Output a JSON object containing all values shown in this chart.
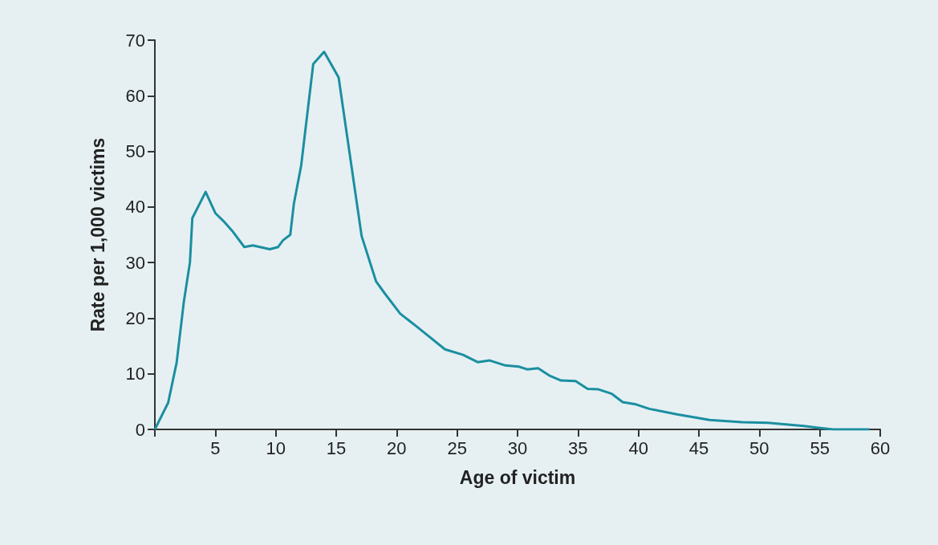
{
  "chart_data": {
    "type": "line",
    "xlabel": "Age of victim",
    "ylabel": "Rate per 1,000 victims",
    "x": [
      0,
      1.1,
      1.8,
      2.4,
      2.9,
      3.1,
      4.2,
      5,
      5.7,
      6.4,
      7.4,
      8.1,
      9.5,
      10.2,
      10.6,
      11.2,
      11.5,
      12.1,
      13.1,
      14,
      15.2,
      16.1,
      17.1,
      18.3,
      19,
      20.3,
      21.6,
      24,
      25.5,
      26.7,
      27.7,
      29,
      30.1,
      30.8,
      31.7,
      32.7,
      33.6,
      34.8,
      35.8,
      36.7,
      37.8,
      38.7,
      39.8,
      40.9,
      43.2,
      45.9,
      48.6,
      50.7,
      53.7,
      56.1,
      59.1
    ],
    "series": [
      {
        "color": "#1a8fa0",
        "values": [
          0,
          4.8,
          12,
          23,
          30,
          38,
          42.7,
          38.9,
          37.4,
          35.7,
          32.8,
          33.1,
          32.4,
          32.8,
          34,
          35,
          40.6,
          47.4,
          65.7,
          67.9,
          63.3,
          49.8,
          34.8,
          26.6,
          24.5,
          20.8,
          18.6,
          14.4,
          13.4,
          12.1,
          12.4,
          11.5,
          11.3,
          10.8,
          11,
          9.6,
          8.8,
          8.7,
          7.3,
          7.2,
          6.4,
          4.9,
          4.5,
          3.7,
          2.7,
          1.7,
          1.3,
          1.2,
          0.6,
          0,
          0
        ]
      }
    ],
    "xlim": [
      0,
      60
    ],
    "xticks": [
      {
        "value": 0,
        "label": null
      },
      5,
      10,
      15,
      20,
      25,
      30,
      35,
      40,
      45,
      50,
      55,
      60
    ],
    "ylim": [
      0,
      70
    ],
    "yticks": [
      0,
      10,
      20,
      30,
      40,
      50,
      60,
      70
    ],
    "grid": false,
    "marker": "none",
    "line_style": "solid"
  }
}
